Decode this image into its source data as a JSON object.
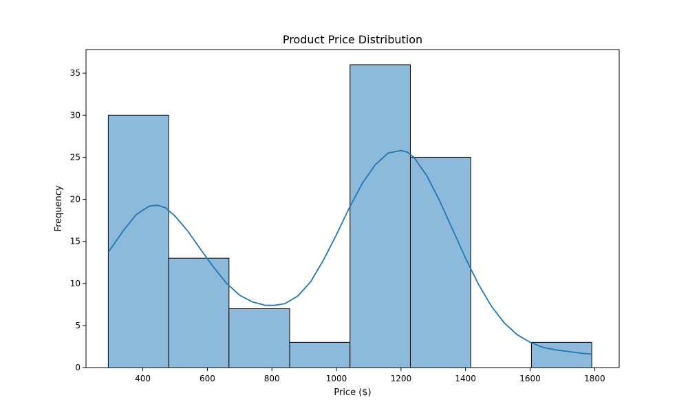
{
  "chart_data": {
    "type": "bar",
    "subtype": "histogram-with-kde",
    "title": "Product Price Distribution",
    "xlabel": "Price ($)",
    "ylabel": "Frequency",
    "xlim": [
      224,
      1876
    ],
    "ylim": [
      0,
      37.8
    ],
    "grid": false,
    "x_ticks": [
      400,
      600,
      800,
      1000,
      1200,
      1400,
      1600,
      1800
    ],
    "y_ticks": [
      0,
      5,
      10,
      15,
      20,
      25,
      30,
      35
    ],
    "bins": [
      {
        "start": 293,
        "end": 480,
        "count": 30
      },
      {
        "start": 480,
        "end": 667,
        "count": 13
      },
      {
        "start": 667,
        "end": 855,
        "count": 7
      },
      {
        "start": 855,
        "end": 1042,
        "count": 3
      },
      {
        "start": 1042,
        "end": 1229,
        "count": 36
      },
      {
        "start": 1229,
        "end": 1416,
        "count": 25
      },
      {
        "start": 1416,
        "end": 1604,
        "count": 0
      },
      {
        "start": 1604,
        "end": 1791,
        "count": 3
      }
    ],
    "kde": {
      "x": [
        293,
        340,
        380,
        420,
        445,
        470,
        500,
        540,
        580,
        620,
        660,
        700,
        740,
        780,
        810,
        840,
        880,
        920,
        960,
        1000,
        1040,
        1080,
        1120,
        1160,
        1200,
        1220,
        1240,
        1280,
        1320,
        1360,
        1400,
        1440,
        1480,
        1520,
        1560,
        1600,
        1640,
        1680,
        1720,
        1760,
        1791
      ],
      "y": [
        13.7,
        16.3,
        18.2,
        19.2,
        19.3,
        19.0,
        18.0,
        16.2,
        14.0,
        11.9,
        10.0,
        8.6,
        7.8,
        7.4,
        7.4,
        7.6,
        8.5,
        10.2,
        12.8,
        15.8,
        19.0,
        21.9,
        24.1,
        25.5,
        25.8,
        25.6,
        25.0,
        22.8,
        19.8,
        16.4,
        13.0,
        9.9,
        7.3,
        5.3,
        3.9,
        3.0,
        2.4,
        2.1,
        1.9,
        1.7,
        1.6
      ],
      "color": "#1f77b4"
    },
    "bar_fill": "#8db9da",
    "bar_edge": "#000000"
  }
}
